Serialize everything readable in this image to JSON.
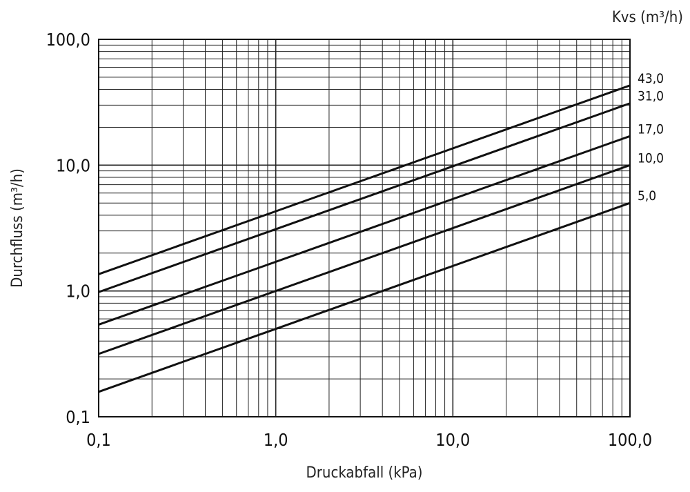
{
  "chart_data": {
    "type": "line",
    "title": "",
    "xlabel": "Druckabfall (kPa)",
    "ylabel": "Durchfluss (m³/h)",
    "legend_title": "Kvs (m³/h)",
    "x_scale": "log",
    "y_scale": "log",
    "xlim": [
      0.1,
      100
    ],
    "ylim": [
      0.1,
      100
    ],
    "grid": true,
    "x_ticks": [
      {
        "value": 0.1,
        "label": "0,1"
      },
      {
        "value": 1,
        "label": "1,0"
      },
      {
        "value": 10,
        "label": "10,0"
      },
      {
        "value": 100,
        "label": "100,0"
      }
    ],
    "y_ticks": [
      {
        "value": 0.1,
        "label": "0,1"
      },
      {
        "value": 1,
        "label": "1,0"
      },
      {
        "value": 10,
        "label": "10,0"
      },
      {
        "value": 100,
        "label": "100,0"
      }
    ],
    "series": [
      {
        "name": "43,0",
        "x": [
          0.1,
          100
        ],
        "y": [
          1.36,
          43.0
        ]
      },
      {
        "name": "31,0",
        "x": [
          0.1,
          100
        ],
        "y": [
          0.98,
          31.0
        ]
      },
      {
        "name": "17,0",
        "x": [
          0.1,
          100
        ],
        "y": [
          0.54,
          17.0
        ]
      },
      {
        "name": "10,0",
        "x": [
          0.1,
          100
        ],
        "y": [
          0.316,
          10.0
        ]
      },
      {
        "name": "5,0",
        "x": [
          0.1,
          100
        ],
        "y": [
          0.158,
          5.0
        ]
      }
    ],
    "line_color": "#111111",
    "grid_color": "#222222"
  }
}
